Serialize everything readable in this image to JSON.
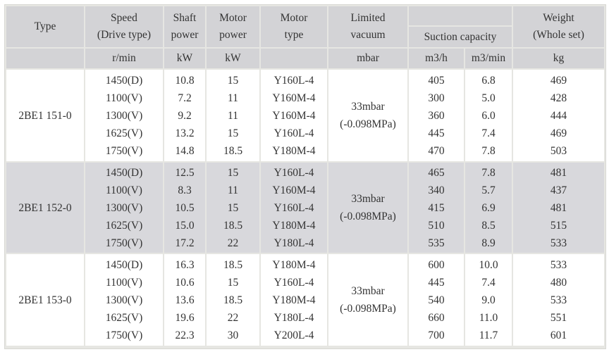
{
  "header": {
    "type": "Type",
    "speed": [
      "Speed",
      "(Drive type)"
    ],
    "shaft_power": [
      "Shaft",
      "power"
    ],
    "motor_power": [
      "Motor",
      "power"
    ],
    "motor_type": [
      "Motor",
      "type"
    ],
    "limited_vacuum": [
      "Limited",
      "vacuum"
    ],
    "suction_capacity": "Suction capacity",
    "weight": [
      "Weight",
      "(Whole set)"
    ]
  },
  "units": {
    "speed": "r/min",
    "shaft_power": "kW",
    "motor_power": "kW",
    "limited_vacuum": "mbar",
    "suction_m3h": "m3/h",
    "suction_m3min": "m3/min",
    "weight": "kg"
  },
  "colors": {
    "header_bg": "#d3d3d6",
    "shaded_group_bg": "#d8d8dc",
    "grid": "#e6e6e2"
  },
  "groups": [
    {
      "type": "2BE1 151-0",
      "shaded": false,
      "limited_vacuum": [
        "33mbar",
        "(-0.098MPa)"
      ],
      "speed": [
        "1450(D)",
        "1100(V)",
        "1300(V)",
        "1625(V)",
        "1750(V)"
      ],
      "shaft_power": [
        "10.8",
        "7.2",
        "9.2",
        "13.2",
        "14.8"
      ],
      "motor_power": [
        "15",
        "11",
        "11",
        "15",
        "18.5"
      ],
      "motor_type": [
        "Y160L-4",
        "Y160M-4",
        "Y160M-4",
        "Y160L-4",
        "Y180M-4"
      ],
      "suction_m3h": [
        "405",
        "300",
        "360",
        "445",
        "470"
      ],
      "suction_m3min": [
        "6.8",
        "5.0",
        "6.0",
        "7.4",
        "7.8"
      ],
      "weight": [
        "469",
        "428",
        "444",
        "469",
        "503"
      ]
    },
    {
      "type": "2BE1 152-0",
      "shaded": true,
      "limited_vacuum": [
        "33mbar",
        "(-0.098MPa)"
      ],
      "speed": [
        "1450(D)",
        "1100(V)",
        "1300(V)",
        "1625(V)",
        "1750(V)"
      ],
      "shaft_power": [
        "12.5",
        "8.3",
        "10.5",
        "15.0",
        "17.2"
      ],
      "motor_power": [
        "15",
        "11",
        "15",
        "18.5",
        "22"
      ],
      "motor_type": [
        "Y160L-4",
        "Y160M-4",
        "Y160L-4",
        "Y180M-4",
        "Y180L-4"
      ],
      "suction_m3h": [
        "465",
        "340",
        "415",
        "510",
        "535"
      ],
      "suction_m3min": [
        "7.8",
        "5.7",
        "6.9",
        "8.5",
        "8.9"
      ],
      "weight": [
        "481",
        "437",
        "481",
        "515",
        "533"
      ]
    },
    {
      "type": "2BE1 153-0",
      "shaded": false,
      "limited_vacuum": [
        "33mbar",
        "(-0.098MPa)"
      ],
      "speed": [
        "1450(D)",
        "1100(V)",
        "1300(V)",
        "1625(V)",
        "1750(V)"
      ],
      "shaft_power": [
        "16.3",
        "10.6",
        "13.6",
        "19.6",
        "22.3"
      ],
      "motor_power": [
        "18.5",
        "15",
        "18.5",
        "22",
        "30"
      ],
      "motor_type": [
        "Y180M-4",
        "Y160L-4",
        "Y180M-4",
        "Y180L-4",
        "Y200L-4"
      ],
      "suction_m3h": [
        "600",
        "445",
        "540",
        "660",
        "700"
      ],
      "suction_m3min": [
        "10.0",
        "7.4",
        "9.0",
        "11.0",
        "11.7"
      ],
      "weight": [
        "533",
        "480",
        "533",
        "551",
        "601"
      ]
    }
  ]
}
